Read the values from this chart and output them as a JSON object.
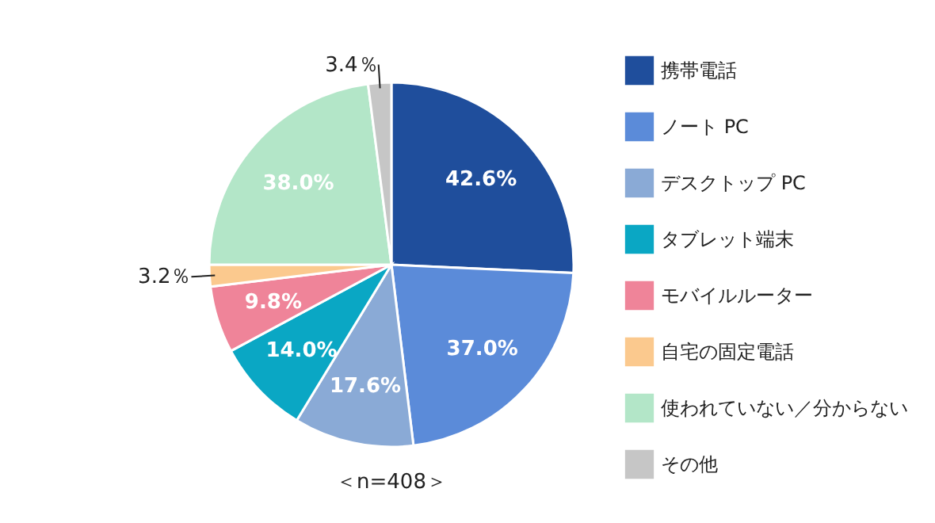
{
  "chart_data": {
    "type": "pie",
    "categories": [
      "携帯電話",
      "ノート PC",
      "デスクトップ PC",
      "タブレット端末",
      "モバイルルーター",
      "自宅の固定電話",
      "使われていない／分からない",
      "その他"
    ],
    "values": [
      42.6,
      37.0,
      17.6,
      14.0,
      9.8,
      3.2,
      38.0,
      3.4
    ],
    "colors": [
      "#1f4e9c",
      "#5b8bd9",
      "#8aaad6",
      "#0aa7c4",
      "#ef8499",
      "#fbc98e",
      "#b3e6c8",
      "#c6c6c6"
    ],
    "value_labels": [
      "42.6%",
      "37.0%",
      "17.6%",
      "14.0%",
      "9.8%",
      "3.2％",
      "38.0%",
      "3.4％"
    ],
    "legend": "right",
    "annotations": [
      "＜n=408＞"
    ]
  }
}
